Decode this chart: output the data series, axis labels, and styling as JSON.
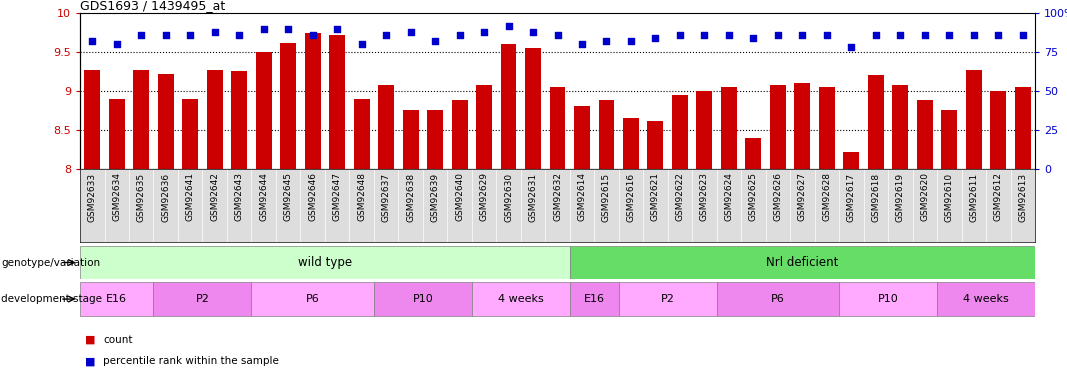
{
  "title": "GDS1693 / 1439495_at",
  "categories": [
    "GSM92633",
    "GSM92634",
    "GSM92635",
    "GSM92636",
    "GSM92641",
    "GSM92642",
    "GSM92643",
    "GSM92644",
    "GSM92645",
    "GSM92646",
    "GSM92647",
    "GSM92648",
    "GSM92637",
    "GSM92638",
    "GSM92639",
    "GSM92640",
    "GSM92629",
    "GSM92630",
    "GSM92631",
    "GSM92632",
    "GSM92614",
    "GSM92615",
    "GSM92616",
    "GSM92621",
    "GSM92622",
    "GSM92623",
    "GSM92624",
    "GSM92625",
    "GSM92626",
    "GSM92627",
    "GSM92628",
    "GSM92617",
    "GSM92618",
    "GSM92619",
    "GSM92620",
    "GSM92610",
    "GSM92611",
    "GSM92612",
    "GSM92613"
  ],
  "bar_values": [
    9.27,
    8.9,
    9.27,
    9.22,
    8.9,
    9.27,
    9.25,
    9.5,
    9.62,
    9.75,
    9.72,
    8.9,
    9.07,
    8.75,
    8.75,
    8.88,
    9.07,
    9.6,
    9.55,
    9.05,
    8.8,
    8.88,
    8.65,
    8.62,
    8.95,
    9.0,
    9.05,
    8.4,
    9.07,
    9.1,
    9.05,
    8.22,
    9.2,
    9.07,
    8.88,
    8.75,
    9.27,
    9.0,
    9.05
  ],
  "percentile_values": [
    82,
    80,
    86,
    86,
    86,
    88,
    86,
    90,
    90,
    86,
    90,
    80,
    86,
    88,
    82,
    86,
    88,
    92,
    88,
    86,
    80,
    82,
    82,
    84,
    86,
    86,
    86,
    84,
    86,
    86,
    86,
    78,
    86,
    86,
    86,
    86,
    86,
    86,
    86
  ],
  "bar_color": "#cc0000",
  "percentile_color": "#0000cc",
  "ylim": [
    8.0,
    10.0
  ],
  "yticks": [
    8.0,
    8.5,
    9.0,
    9.5,
    10.0
  ],
  "ytick_labels_left": [
    "8",
    "8.5",
    "9",
    "9.5",
    "10"
  ],
  "ytick_labels_right": [
    "0",
    "25",
    "50",
    "75",
    "100%"
  ],
  "grid_values": [
    8.5,
    9.0,
    9.5
  ],
  "wild_type_count": 20,
  "nrl_deficient_count": 19,
  "genotype_variation_label": "genotype/variation",
  "development_stage_label": "development stage",
  "wild_type_label": "wild type",
  "nrl_deficient_label": "Nrl deficient",
  "dev_stages_wt": [
    {
      "label": "E16",
      "start": 0,
      "end": 3
    },
    {
      "label": "P2",
      "start": 3,
      "end": 7
    },
    {
      "label": "P6",
      "start": 7,
      "end": 12
    },
    {
      "label": "P10",
      "start": 12,
      "end": 16
    },
    {
      "label": "4 weeks",
      "start": 16,
      "end": 20
    }
  ],
  "dev_stages_nrl": [
    {
      "label": "E16",
      "start": 20,
      "end": 22
    },
    {
      "label": "P2",
      "start": 22,
      "end": 26
    },
    {
      "label": "P6",
      "start": 26,
      "end": 31
    },
    {
      "label": "P10",
      "start": 31,
      "end": 35
    },
    {
      "label": "4 weeks",
      "start": 35,
      "end": 39
    }
  ],
  "wt_bg": "#ccffcc",
  "nrl_bg": "#66dd66",
  "dev_stage_color_light": "#ffaaff",
  "dev_stage_color_dark": "#ee88ee",
  "tick_label_fontsize": 6.5,
  "bar_width": 0.65,
  "legend_count_label": "count",
  "legend_percentile_label": "percentile rank within the sample"
}
